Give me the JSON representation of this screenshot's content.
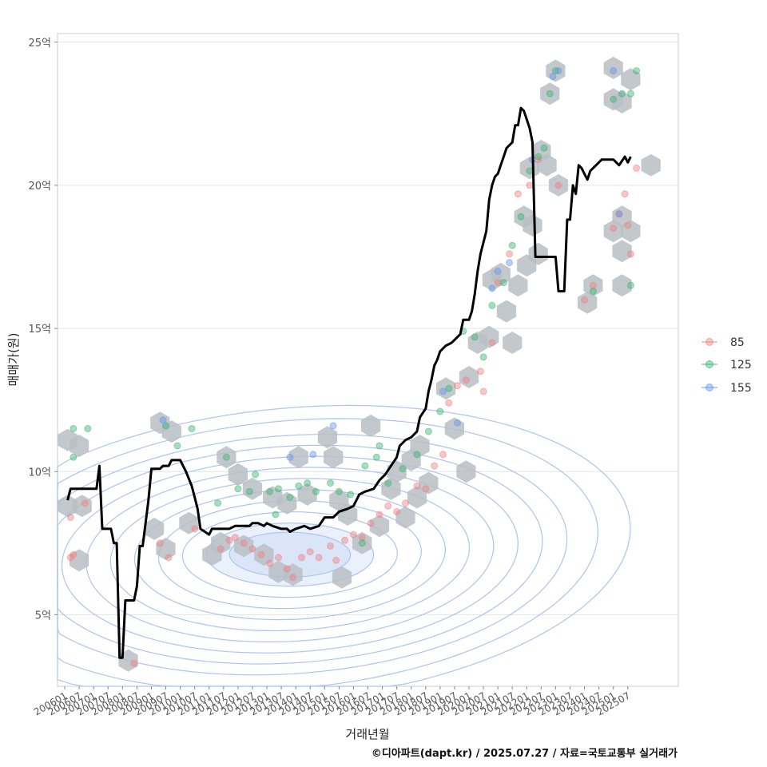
{
  "chart_data": {
    "type": "scatter",
    "xlabel": "거래년월",
    "ylabel": "매매가(원)",
    "caption": "©디아파트(dapt.kr) / 2025.07.27 / 자료=국토교통부 실거래가",
    "y_ticks": [
      {
        "value": 5,
        "label": "5억"
      },
      {
        "value": 10,
        "label": "10억"
      },
      {
        "value": 15,
        "label": "15억"
      },
      {
        "value": 20,
        "label": "20억"
      },
      {
        "value": 25,
        "label": "25억"
      }
    ],
    "ylim": [
      2.5,
      25.3
    ],
    "xlim": [
      2005.75,
      2027.25
    ],
    "x_ticks": [
      "200601",
      "200607",
      "200701",
      "200707",
      "200801",
      "200807",
      "200901",
      "200907",
      "201001",
      "201007",
      "201101",
      "201107",
      "201201",
      "201207",
      "201301",
      "201307",
      "201401",
      "201407",
      "201501",
      "201507",
      "201601",
      "201607",
      "201701",
      "201707",
      "201801",
      "201807",
      "201901",
      "201907",
      "202001",
      "202007",
      "202101",
      "202107",
      "202201",
      "202207",
      "202301",
      "202307",
      "202401",
      "202407",
      "202501",
      "202507"
    ],
    "grid": true,
    "legend_position": "right",
    "series_colors": {
      "85": "#f08080",
      "125": "#3cb371",
      "155": "#6495ed"
    },
    "legend": [
      {
        "label": "85",
        "color": "#f08080"
      },
      {
        "label": "125",
        "color": "#3cb371"
      },
      {
        "label": "155",
        "color": "#6495ed"
      }
    ],
    "hexbins": [
      [
        2006.1,
        11.1
      ],
      [
        2006.5,
        10.9
      ],
      [
        2006.1,
        8.8
      ],
      [
        2006.6,
        8.8
      ],
      [
        2006.5,
        6.9
      ],
      [
        2008.2,
        3.4
      ],
      [
        2009.3,
        11.7
      ],
      [
        2009.7,
        11.4
      ],
      [
        2009.1,
        8.0
      ],
      [
        2009.5,
        7.3
      ],
      [
        2010.3,
        8.2
      ],
      [
        2011.1,
        7.1
      ],
      [
        2011.6,
        10.5
      ],
      [
        2011.4,
        7.5
      ],
      [
        2012.0,
        9.9
      ],
      [
        2012.5,
        9.4
      ],
      [
        2012.2,
        7.4
      ],
      [
        2012.9,
        7.1
      ],
      [
        2013.4,
        6.5
      ],
      [
        2013.9,
        6.4
      ],
      [
        2013.2,
        9.1
      ],
      [
        2013.7,
        8.9
      ],
      [
        2014.4,
        9.2
      ],
      [
        2014.1,
        10.5
      ],
      [
        2015.1,
        11.2
      ],
      [
        2015.3,
        10.5
      ],
      [
        2015.5,
        9.0
      ],
      [
        2015.8,
        8.5
      ],
      [
        2015.6,
        6.3
      ],
      [
        2016.6,
        11.6
      ],
      [
        2016.3,
        7.5
      ],
      [
        2016.9,
        8.1
      ],
      [
        2017.3,
        9.4
      ],
      [
        2017.5,
        10.0
      ],
      [
        2018.0,
        10.4
      ],
      [
        2018.3,
        10.9
      ],
      [
        2018.2,
        9.1
      ],
      [
        2017.8,
        8.4
      ],
      [
        2018.6,
        9.6
      ],
      [
        2019.2,
        12.9
      ],
      [
        2019.5,
        11.5
      ],
      [
        2019.9,
        10.0
      ],
      [
        2020.0,
        13.3
      ],
      [
        2020.3,
        14.5
      ],
      [
        2020.7,
        14.7
      ],
      [
        2020.8,
        16.7
      ],
      [
        2021.1,
        16.9
      ],
      [
        2021.3,
        15.6
      ],
      [
        2021.5,
        14.5
      ],
      [
        2021.7,
        16.5
      ],
      [
        2021.9,
        18.9
      ],
      [
        2022.2,
        18.6
      ],
      [
        2022.0,
        17.2
      ],
      [
        2022.1,
        20.6
      ],
      [
        2022.5,
        21.2
      ],
      [
        2022.7,
        20.7
      ],
      [
        2022.4,
        17.6
      ],
      [
        2022.8,
        23.2
      ],
      [
        2023.0,
        24.0
      ],
      [
        2023.1,
        20.0
      ],
      [
        2024.1,
        15.9
      ],
      [
        2024.3,
        16.5
      ],
      [
        2025.0,
        24.1
      ],
      [
        2025.6,
        23.7
      ],
      [
        2025.0,
        23.0
      ],
      [
        2025.3,
        22.9
      ],
      [
        2025.0,
        18.4
      ],
      [
        2025.3,
        17.7
      ],
      [
        2025.3,
        18.9
      ],
      [
        2025.6,
        18.4
      ],
      [
        2025.3,
        16.5
      ],
      [
        2026.3,
        20.7
      ]
    ],
    "points_85": [
      [
        2006.2,
        8.4
      ],
      [
        2006.3,
        7.1
      ],
      [
        2006.2,
        7.0
      ],
      [
        2006.7,
        8.9
      ],
      [
        2008.4,
        3.3
      ],
      [
        2009.6,
        7.0
      ],
      [
        2009.3,
        7.5
      ],
      [
        2010.5,
        8.0
      ],
      [
        2011.4,
        7.3
      ],
      [
        2011.7,
        7.6
      ],
      [
        2011.9,
        7.7
      ],
      [
        2012.2,
        7.5
      ],
      [
        2012.5,
        7.3
      ],
      [
        2012.8,
        7.1
      ],
      [
        2013.1,
        6.8
      ],
      [
        2013.4,
        7.0
      ],
      [
        2013.7,
        6.6
      ],
      [
        2013.9,
        6.3
      ],
      [
        2014.2,
        7.0
      ],
      [
        2014.5,
        7.2
      ],
      [
        2014.8,
        7.0
      ],
      [
        2015.2,
        7.4
      ],
      [
        2015.4,
        6.9
      ],
      [
        2015.7,
        7.6
      ],
      [
        2016.0,
        7.8
      ],
      [
        2016.3,
        7.7
      ],
      [
        2016.6,
        8.2
      ],
      [
        2016.9,
        8.5
      ],
      [
        2017.2,
        8.8
      ],
      [
        2017.5,
        8.6
      ],
      [
        2017.8,
        8.9
      ],
      [
        2018.2,
        9.5
      ],
      [
        2018.5,
        9.4
      ],
      [
        2018.8,
        10.2
      ],
      [
        2019.1,
        10.6
      ],
      [
        2019.3,
        12.4
      ],
      [
        2019.6,
        13.0
      ],
      [
        2019.9,
        13.2
      ],
      [
        2020.4,
        13.5
      ],
      [
        2020.5,
        12.8
      ],
      [
        2020.8,
        14.5
      ],
      [
        2021.0,
        16.6
      ],
      [
        2021.4,
        17.6
      ],
      [
        2021.7,
        19.7
      ],
      [
        2022.1,
        20.0
      ],
      [
        2022.4,
        20.9
      ],
      [
        2023.1,
        20.0
      ],
      [
        2024.0,
        16.0
      ],
      [
        2024.3,
        16.5
      ],
      [
        2025.0,
        18.5
      ],
      [
        2025.2,
        19.0
      ],
      [
        2025.4,
        19.7
      ],
      [
        2025.5,
        18.6
      ],
      [
        2025.6,
        17.6
      ],
      [
        2025.8,
        20.6
      ]
    ],
    "points_125": [
      [
        2006.3,
        11.5
      ],
      [
        2006.3,
        10.5
      ],
      [
        2006.8,
        11.5
      ],
      [
        2009.5,
        11.6
      ],
      [
        2009.9,
        10.9
      ],
      [
        2010.4,
        11.5
      ],
      [
        2011.3,
        8.9
      ],
      [
        2011.6,
        10.5
      ],
      [
        2012.0,
        9.4
      ],
      [
        2012.4,
        9.3
      ],
      [
        2012.6,
        9.9
      ],
      [
        2013.1,
        9.3
      ],
      [
        2013.4,
        9.4
      ],
      [
        2013.8,
        9.1
      ],
      [
        2013.3,
        8.5
      ],
      [
        2014.1,
        9.5
      ],
      [
        2014.4,
        9.6
      ],
      [
        2014.7,
        9.3
      ],
      [
        2015.2,
        9.6
      ],
      [
        2015.5,
        9.3
      ],
      [
        2015.9,
        9.2
      ],
      [
        2016.4,
        10.2
      ],
      [
        2016.8,
        10.5
      ],
      [
        2016.9,
        10.9
      ],
      [
        2016.3,
        7.5
      ],
      [
        2017.2,
        9.6
      ],
      [
        2017.7,
        10.1
      ],
      [
        2018.2,
        10.6
      ],
      [
        2018.6,
        11.4
      ],
      [
        2019.0,
        12.1
      ],
      [
        2019.3,
        12.9
      ],
      [
        2019.8,
        14.9
      ],
      [
        2020.2,
        14.7
      ],
      [
        2020.5,
        14.0
      ],
      [
        2020.8,
        15.8
      ],
      [
        2021.2,
        16.6
      ],
      [
        2021.5,
        17.9
      ],
      [
        2021.8,
        18.9
      ],
      [
        2022.1,
        20.5
      ],
      [
        2022.4,
        21.0
      ],
      [
        2022.6,
        21.3
      ],
      [
        2022.8,
        23.2
      ],
      [
        2023.0,
        24.0
      ],
      [
        2024.3,
        16.3
      ],
      [
        2025.0,
        23.0
      ],
      [
        2025.3,
        23.2
      ],
      [
        2025.6,
        23.2
      ],
      [
        2025.8,
        24.0
      ],
      [
        2025.6,
        16.5
      ]
    ],
    "points_155": [
      [
        2009.4,
        11.8
      ],
      [
        2013.8,
        10.5
      ],
      [
        2014.6,
        10.6
      ],
      [
        2015.3,
        11.6
      ],
      [
        2019.1,
        12.8
      ],
      [
        2019.6,
        11.7
      ],
      [
        2020.8,
        16.4
      ],
      [
        2021.0,
        17.0
      ],
      [
        2021.4,
        17.3
      ],
      [
        2022.2,
        20.9
      ],
      [
        2022.9,
        23.8
      ],
      [
        2023.1,
        24.0
      ],
      [
        2025.0,
        24.0
      ],
      [
        2025.2,
        19.0
      ]
    ],
    "trend_line": [
      [
        2006.1,
        9.0
      ],
      [
        2006.2,
        9.4
      ],
      [
        2007.1,
        9.4
      ],
      [
        2007.2,
        10.2
      ],
      [
        2007.3,
        8.0
      ],
      [
        2007.6,
        8.0
      ],
      [
        2007.7,
        7.5
      ],
      [
        2007.8,
        7.5
      ],
      [
        2007.9,
        3.5
      ],
      [
        2008.0,
        3.5
      ],
      [
        2008.1,
        5.5
      ],
      [
        2008.4,
        5.5
      ],
      [
        2008.5,
        6.0
      ],
      [
        2008.6,
        7.4
      ],
      [
        2008.7,
        7.4
      ],
      [
        2008.9,
        9.0
      ],
      [
        2009.0,
        10.1
      ],
      [
        2009.3,
        10.1
      ],
      [
        2009.4,
        10.2
      ],
      [
        2009.6,
        10.2
      ],
      [
        2009.7,
        10.4
      ],
      [
        2010.0,
        10.4
      ],
      [
        2010.2,
        10.0
      ],
      [
        2010.4,
        9.5
      ],
      [
        2010.5,
        9.1
      ],
      [
        2010.6,
        8.7
      ],
      [
        2010.7,
        8.0
      ],
      [
        2011.0,
        7.8
      ],
      [
        2011.1,
        8.0
      ],
      [
        2011.5,
        8.0
      ],
      [
        2011.7,
        8.0
      ],
      [
        2011.9,
        8.1
      ],
      [
        2012.2,
        8.1
      ],
      [
        2012.4,
        8.1
      ],
      [
        2012.5,
        8.2
      ],
      [
        2012.7,
        8.2
      ],
      [
        2012.9,
        8.1
      ],
      [
        2013.0,
        8.2
      ],
      [
        2013.2,
        8.1
      ],
      [
        2013.5,
        8.0
      ],
      [
        2013.7,
        8.0
      ],
      [
        2013.8,
        7.9
      ],
      [
        2014.0,
        8.0
      ],
      [
        2014.3,
        8.1
      ],
      [
        2014.5,
        8.0
      ],
      [
        2014.8,
        8.1
      ],
      [
        2015.0,
        8.4
      ],
      [
        2015.3,
        8.4
      ],
      [
        2015.5,
        8.6
      ],
      [
        2015.8,
        8.7
      ],
      [
        2016.0,
        8.8
      ],
      [
        2016.2,
        9.2
      ],
      [
        2016.4,
        9.3
      ],
      [
        2016.7,
        9.4
      ],
      [
        2016.9,
        9.7
      ],
      [
        2017.1,
        9.9
      ],
      [
        2017.3,
        10.2
      ],
      [
        2017.5,
        10.5
      ],
      [
        2017.6,
        10.9
      ],
      [
        2017.8,
        11.1
      ],
      [
        2018.0,
        11.2
      ],
      [
        2018.2,
        11.4
      ],
      [
        2018.3,
        11.9
      ],
      [
        2018.5,
        12.2
      ],
      [
        2018.6,
        12.8
      ],
      [
        2018.7,
        13.2
      ],
      [
        2018.8,
        13.7
      ],
      [
        2018.9,
        13.9
      ],
      [
        2019.0,
        14.2
      ],
      [
        2019.2,
        14.4
      ],
      [
        2019.4,
        14.5
      ],
      [
        2019.5,
        14.6
      ],
      [
        2019.7,
        14.8
      ],
      [
        2019.8,
        15.3
      ],
      [
        2020.0,
        15.3
      ],
      [
        2020.1,
        15.6
      ],
      [
        2020.2,
        16.2
      ],
      [
        2020.3,
        17.0
      ],
      [
        2020.4,
        17.6
      ],
      [
        2020.6,
        18.4
      ],
      [
        2020.7,
        19.5
      ],
      [
        2020.8,
        20.0
      ],
      [
        2020.9,
        20.3
      ],
      [
        2021.0,
        20.4
      ],
      [
        2021.1,
        20.7
      ],
      [
        2021.2,
        21.0
      ],
      [
        2021.3,
        21.3
      ],
      [
        2021.5,
        21.5
      ],
      [
        2021.6,
        22.1
      ],
      [
        2021.7,
        22.1
      ],
      [
        2021.8,
        22.7
      ],
      [
        2021.9,
        22.6
      ],
      [
        2022.0,
        22.3
      ],
      [
        2022.1,
        22.0
      ],
      [
        2022.2,
        21.5
      ],
      [
        2022.3,
        17.5
      ],
      [
        2023.0,
        17.5
      ],
      [
        2023.1,
        16.3
      ],
      [
        2023.3,
        16.3
      ],
      [
        2023.4,
        18.8
      ],
      [
        2023.5,
        18.8
      ],
      [
        2023.6,
        20.0
      ],
      [
        2023.7,
        19.7
      ],
      [
        2023.8,
        20.7
      ],
      [
        2023.9,
        20.6
      ],
      [
        2024.1,
        20.2
      ],
      [
        2024.2,
        20.5
      ],
      [
        2024.4,
        20.7
      ],
      [
        2024.6,
        20.9
      ],
      [
        2024.8,
        20.9
      ],
      [
        2025.0,
        20.9
      ],
      [
        2025.2,
        20.7
      ],
      [
        2025.4,
        21.0
      ],
      [
        2025.5,
        20.8
      ],
      [
        2025.6,
        21.0
      ]
    ],
    "density_center": [
      2013.8,
      7.1
    ],
    "density_levels": [
      [
        2.1,
        0.78,
        -0.26
      ],
      [
        2.9,
        1.1,
        -0.3
      ],
      [
        3.7,
        1.5,
        -0.32
      ],
      [
        4.5,
        1.9,
        -0.33
      ],
      [
        5.3,
        2.3,
        -0.34
      ],
      [
        6.1,
        2.7,
        -0.35
      ],
      [
        6.9,
        3.1,
        -0.36
      ],
      [
        7.7,
        3.5,
        -0.37
      ],
      [
        8.5,
        3.9,
        -0.38
      ],
      [
        9.3,
        4.3,
        -0.39
      ],
      [
        10.2,
        4.9,
        -0.42
      ],
      [
        11.2,
        5.4,
        -0.45
      ]
    ]
  }
}
